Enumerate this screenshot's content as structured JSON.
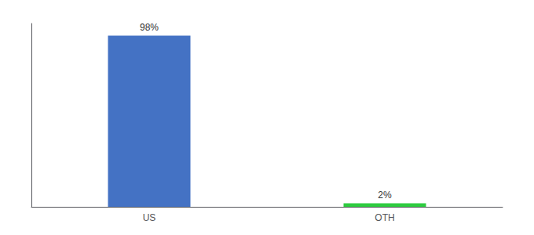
{
  "chart_data": {
    "type": "bar",
    "categories": [
      "US",
      "OTH"
    ],
    "values": [
      98,
      2
    ],
    "value_labels": [
      "98%",
      "2%"
    ],
    "colors": [
      "#4472c4",
      "#2ecc40"
    ],
    "ylim": [
      0,
      105
    ],
    "yticks": [],
    "tick_labels": "x",
    "data_labels": true,
    "grid": false
  }
}
